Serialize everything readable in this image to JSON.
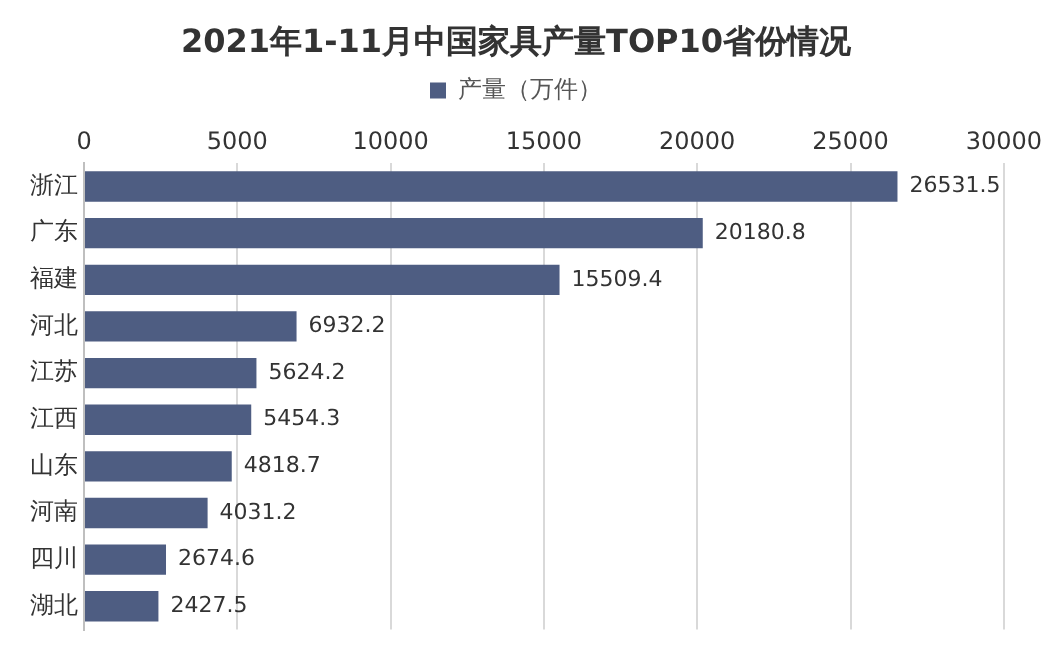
{
  "chart_data": {
    "type": "bar",
    "orientation": "horizontal",
    "title": "2021年1-11月中国家具产量TOP10省份情况",
    "categories": [
      "浙江",
      "广东",
      "福建",
      "河北",
      "江苏",
      "江西",
      "山东",
      "河南",
      "四川",
      "湖北"
    ],
    "series": [
      {
        "name": "产量（万件）",
        "color": "#4e5d82",
        "values": [
          26531.5,
          20180.8,
          15509.4,
          6932.2,
          5624.2,
          5454.3,
          4818.7,
          4031.2,
          2674.6,
          2427.5
        ]
      }
    ],
    "xlim": [
      0,
      30000
    ],
    "xticks": [
      0,
      5000,
      10000,
      15000,
      20000,
      25000,
      30000
    ],
    "grid": "x",
    "legend": "top",
    "data_labels": true
  }
}
